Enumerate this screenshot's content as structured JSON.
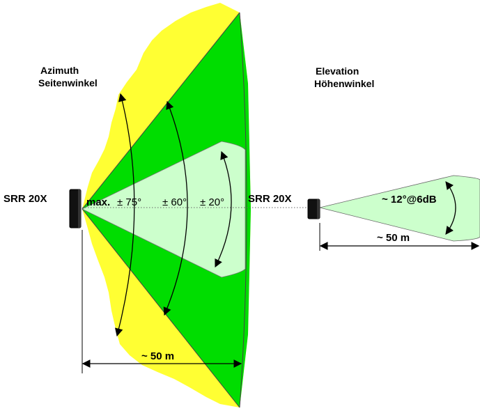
{
  "azimuth": {
    "title_line1": "Azimuth",
    "title_line2": "Seitenwinkel",
    "sensor_label": "SRR 20X",
    "angle_max_prefix": "max.",
    "angle_75": "± 75°",
    "angle_60": "± 60°",
    "angle_20": "± 20°",
    "range_label": "~ 50 m"
  },
  "elevation": {
    "title_line1": "Elevation",
    "title_line2": "Höhenwinkel",
    "sensor_label": "SRR 20X",
    "beam_label": "~ 12°@6dB",
    "range_label": "~ 50 m"
  },
  "colors": {
    "zone_75": "#ffff33",
    "zone_60": "#00dd00",
    "zone_20": "#ccffcc",
    "sensor": "#111111"
  }
}
